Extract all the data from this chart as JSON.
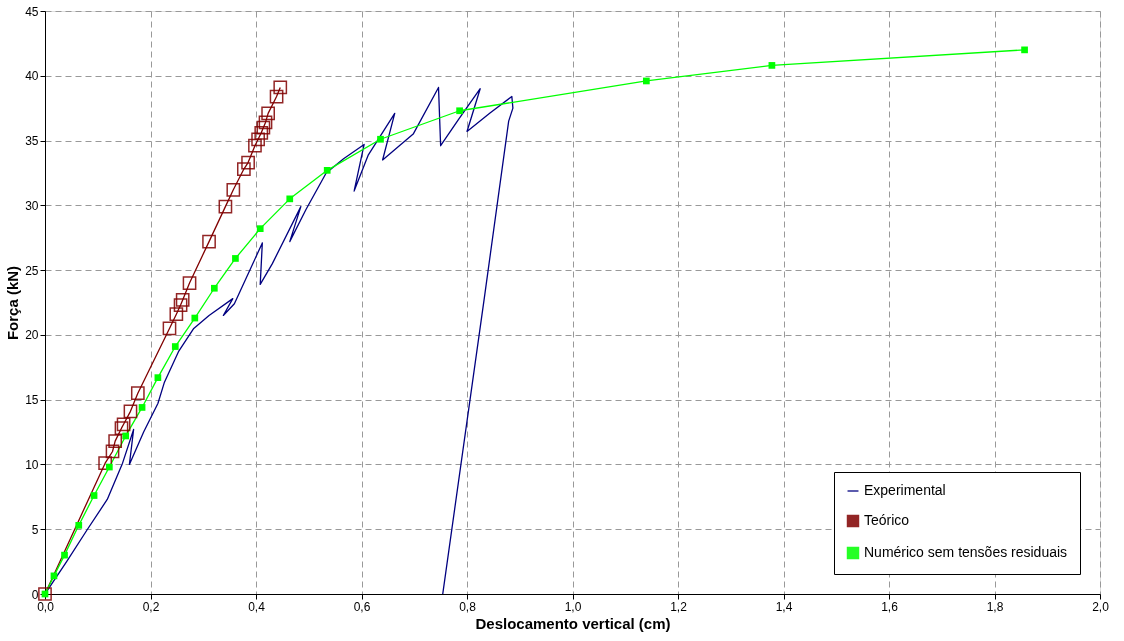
{
  "chart_data": {
    "type": "line",
    "xlabel": "Deslocamento vertical (cm)",
    "ylabel": "Força (kN)",
    "xlim": [
      0,
      2.0
    ],
    "ylim": [
      0,
      45
    ],
    "xticks": [
      {
        "value": 0,
        "label": "0,0"
      },
      {
        "value": 0.2,
        "label": "0,2"
      },
      {
        "value": 0.4,
        "label": "0,4"
      },
      {
        "value": 0.6,
        "label": "0,6"
      },
      {
        "value": 0.8,
        "label": "0,8"
      },
      {
        "value": 1.0,
        "label": "1,0"
      },
      {
        "value": 1.2,
        "label": "1,2"
      },
      {
        "value": 1.4,
        "label": "1,4"
      },
      {
        "value": 1.6,
        "label": "1,6"
      },
      {
        "value": 1.8,
        "label": "1,8"
      },
      {
        "value": 2.0,
        "label": "2,0"
      }
    ],
    "yticks": [
      0,
      5,
      10,
      15,
      20,
      25,
      30,
      35,
      40,
      45
    ],
    "grid": true,
    "legend": "bottom right",
    "line_style": "solid",
    "series": [
      {
        "name": "Experimental",
        "color": "#000080",
        "marker": "none",
        "x": [
          0,
          0.041,
          0.079,
          0.118,
          0.147,
          0.168,
          0.16,
          0.187,
          0.214,
          0.226,
          0.253,
          0.282,
          0.311,
          0.356,
          0.338,
          0.359,
          0.412,
          0.408,
          0.431,
          0.485,
          0.464,
          0.495,
          0.533,
          0.566,
          0.605,
          0.586,
          0.613,
          0.663,
          0.64,
          0.698,
          0.746,
          0.75,
          0.785,
          0.825,
          0.8,
          0.843,
          0.885,
          0.887,
          0.879,
          0.833,
          0.754
        ],
        "values": [
          0,
          2.5,
          4.9,
          7.3,
          10.1,
          12.7,
          10.0,
          12.5,
          14.7,
          16.3,
          18.7,
          20.5,
          21.5,
          22.8,
          21.5,
          22.4,
          27.1,
          23.9,
          25.5,
          29.9,
          27.2,
          29.7,
          32.5,
          33.6,
          34.7,
          31.1,
          33.9,
          37.1,
          33.5,
          35.5,
          39.1,
          34.6,
          36.7,
          39.0,
          35.7,
          37.1,
          38.4,
          37.5,
          36.5,
          22.9,
          0
        ]
      },
      {
        "name": "Teórico",
        "color": "#800000",
        "marker": "square",
        "x": [
          0,
          0.114,
          0.128,
          0.133,
          0.145,
          0.149,
          0.162,
          0.176,
          0.236,
          0.249,
          0.257,
          0.261,
          0.274,
          0.311,
          0.342,
          0.357,
          0.377,
          0.385,
          0.398,
          0.404,
          0.41,
          0.414,
          0.418,
          0.423,
          0.439,
          0.446
        ],
        "values": [
          0,
          10.1,
          11.0,
          11.8,
          12.8,
          13.1,
          14.1,
          15.5,
          20.5,
          21.6,
          22.3,
          22.7,
          24.0,
          27.2,
          29.9,
          31.2,
          32.8,
          33.3,
          34.6,
          35.1,
          35.6,
          36.0,
          36.4,
          37.1,
          38.4,
          39.1
        ]
      },
      {
        "name": "Numérico sem tensões residuais",
        "color": "#00ff00",
        "marker": "square",
        "x": [
          0,
          0.017,
          0.037,
          0.064,
          0.093,
          0.122,
          0.153,
          0.184,
          0.214,
          0.247,
          0.284,
          0.321,
          0.361,
          0.408,
          0.464,
          0.535,
          0.636,
          0.786,
          1.14,
          1.378,
          1.857
        ],
        "values": [
          0,
          1.4,
          3.0,
          5.3,
          7.6,
          9.8,
          12.2,
          14.4,
          16.7,
          19.1,
          21.3,
          23.6,
          25.9,
          28.2,
          30.5,
          32.7,
          35.1,
          37.3,
          39.6,
          40.8,
          42.0
        ]
      }
    ]
  }
}
